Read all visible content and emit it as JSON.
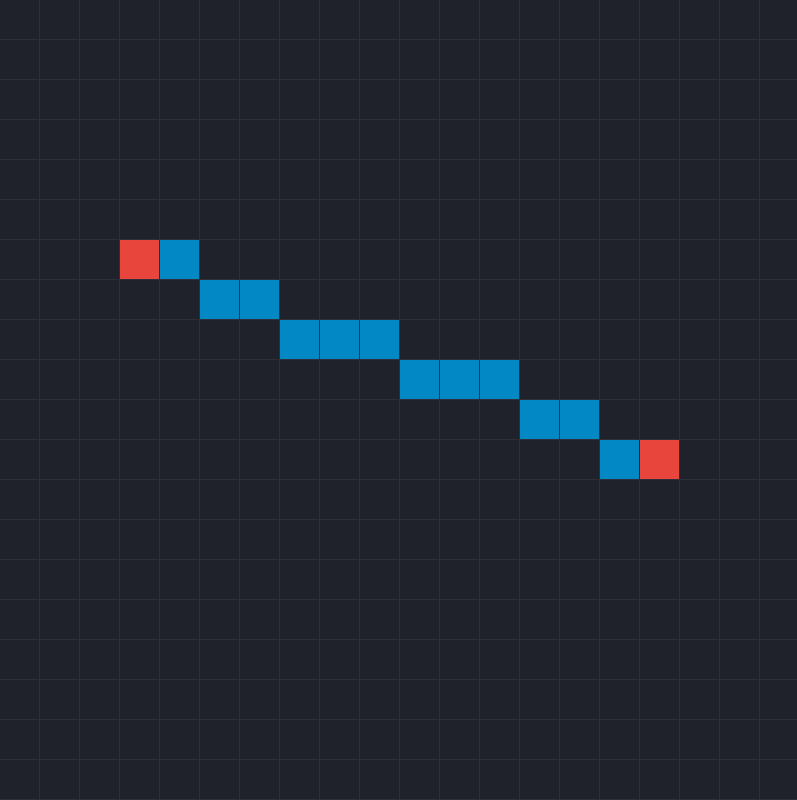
{
  "grid": {
    "columns": 20,
    "rows": 20,
    "background_color": "#1f212b",
    "line_color": "#2d303b"
  },
  "colors": {
    "endpoint": "#e8453c",
    "path": "#0288c4"
  },
  "endpoints": [
    {
      "col": 3,
      "row": 6
    },
    {
      "col": 16,
      "row": 11
    }
  ],
  "path_cells": [
    {
      "col": 4,
      "row": 6
    },
    {
      "col": 5,
      "row": 7
    },
    {
      "col": 6,
      "row": 7
    },
    {
      "col": 7,
      "row": 8
    },
    {
      "col": 8,
      "row": 8
    },
    {
      "col": 9,
      "row": 8
    },
    {
      "col": 10,
      "row": 9
    },
    {
      "col": 11,
      "row": 9
    },
    {
      "col": 12,
      "row": 9
    },
    {
      "col": 13,
      "row": 10
    },
    {
      "col": 14,
      "row": 10
    },
    {
      "col": 15,
      "row": 11
    }
  ]
}
